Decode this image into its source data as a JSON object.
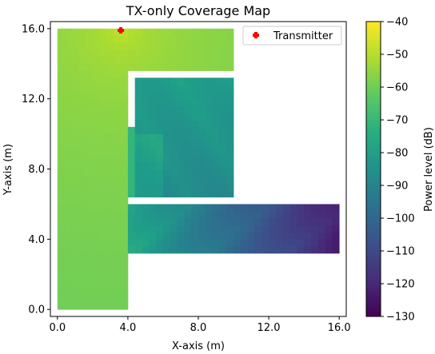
{
  "chart_data": {
    "type": "heatmap",
    "title": "TX-only Coverage Map",
    "xlabel": "X-axis (m)",
    "ylabel": "Y-axis (m)",
    "xlim": [
      -0.4,
      16.4
    ],
    "ylim": [
      -0.4,
      16.4
    ],
    "x_ticks": [
      0.0,
      4.0,
      8.0,
      12.0,
      16.0
    ],
    "y_ticks": [
      0.0,
      4.0,
      8.0,
      12.0,
      16.0
    ],
    "x_tick_labels": [
      "0.0",
      "4.0",
      "8.0",
      "12.0",
      "16.0"
    ],
    "y_tick_labels": [
      "0.0",
      "4.0",
      "8.0",
      "12.0",
      "16.0"
    ],
    "grid": false,
    "legend": {
      "position": "top-right",
      "entries": [
        "Transmitter"
      ]
    },
    "transmitter": {
      "x": 3.6,
      "y": 15.9,
      "marker": "plus",
      "color": "#ff0000"
    },
    "colorbar": {
      "label": "Power level (dB)",
      "min": -130,
      "max": -40,
      "ticks": [
        -40,
        -50,
        -60,
        -70,
        -80,
        -90,
        -100,
        -110,
        -120,
        -130
      ],
      "tick_labels": [
        "−40",
        "−50",
        "−60",
        "−70",
        "−80",
        "−90",
        "−100",
        "−110",
        "−120",
        "−130"
      ],
      "colormap": "viridis"
    },
    "cell_size_m": 0.4,
    "regions": [
      {
        "name": "left corridor",
        "x": [
          0.0,
          4.0
        ],
        "y": [
          0.0,
          16.0
        ]
      },
      {
        "name": "top corridor",
        "x": [
          4.0,
          10.0
        ],
        "y": [
          13.6,
          16.0
        ]
      },
      {
        "name": "upper room left strip",
        "x": [
          4.0,
          4.4
        ],
        "y": [
          6.4,
          10.4
        ]
      },
      {
        "name": "upper room",
        "x": [
          4.4,
          10.0
        ],
        "y": [
          6.4,
          13.2
        ]
      },
      {
        "name": "lower corridor",
        "x": [
          4.0,
          16.0
        ],
        "y": [
          3.2,
          6.0
        ]
      }
    ]
  }
}
